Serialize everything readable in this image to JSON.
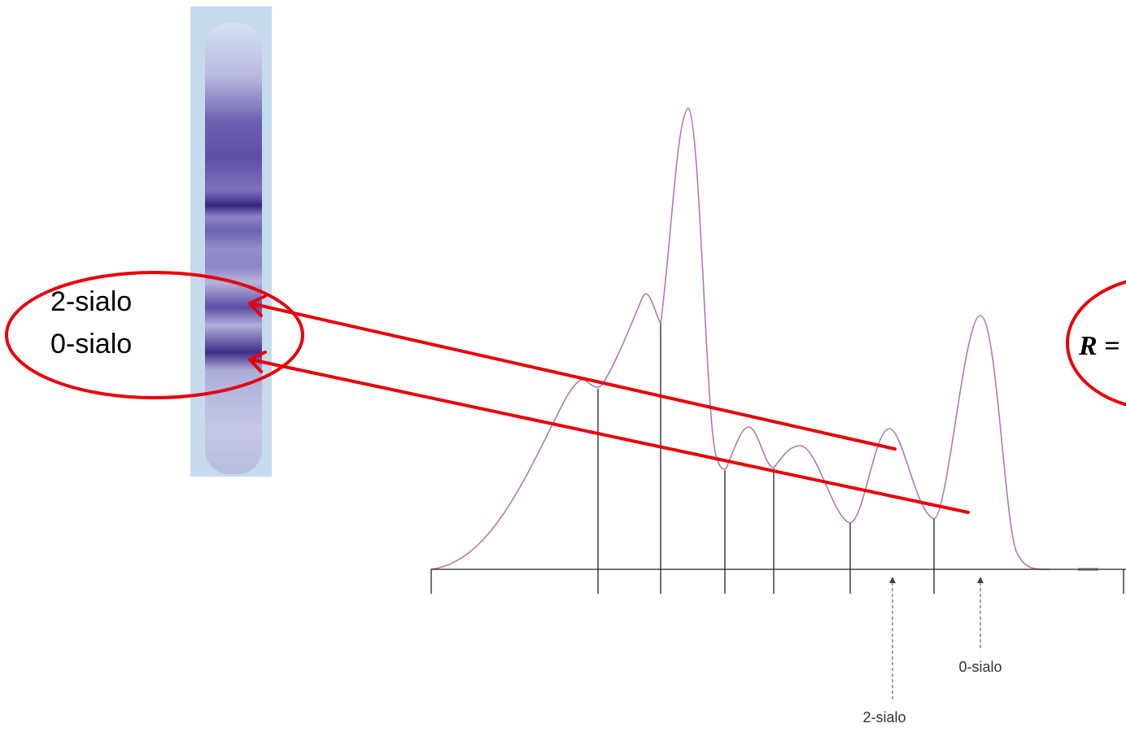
{
  "gel_labels": [
    "2-sialo",
    "0-sialo"
  ],
  "axis_labels": {
    "two_sialo": "2-sialo",
    "zero_sialo": "0-sialo"
  },
  "formula": "R ="
}
